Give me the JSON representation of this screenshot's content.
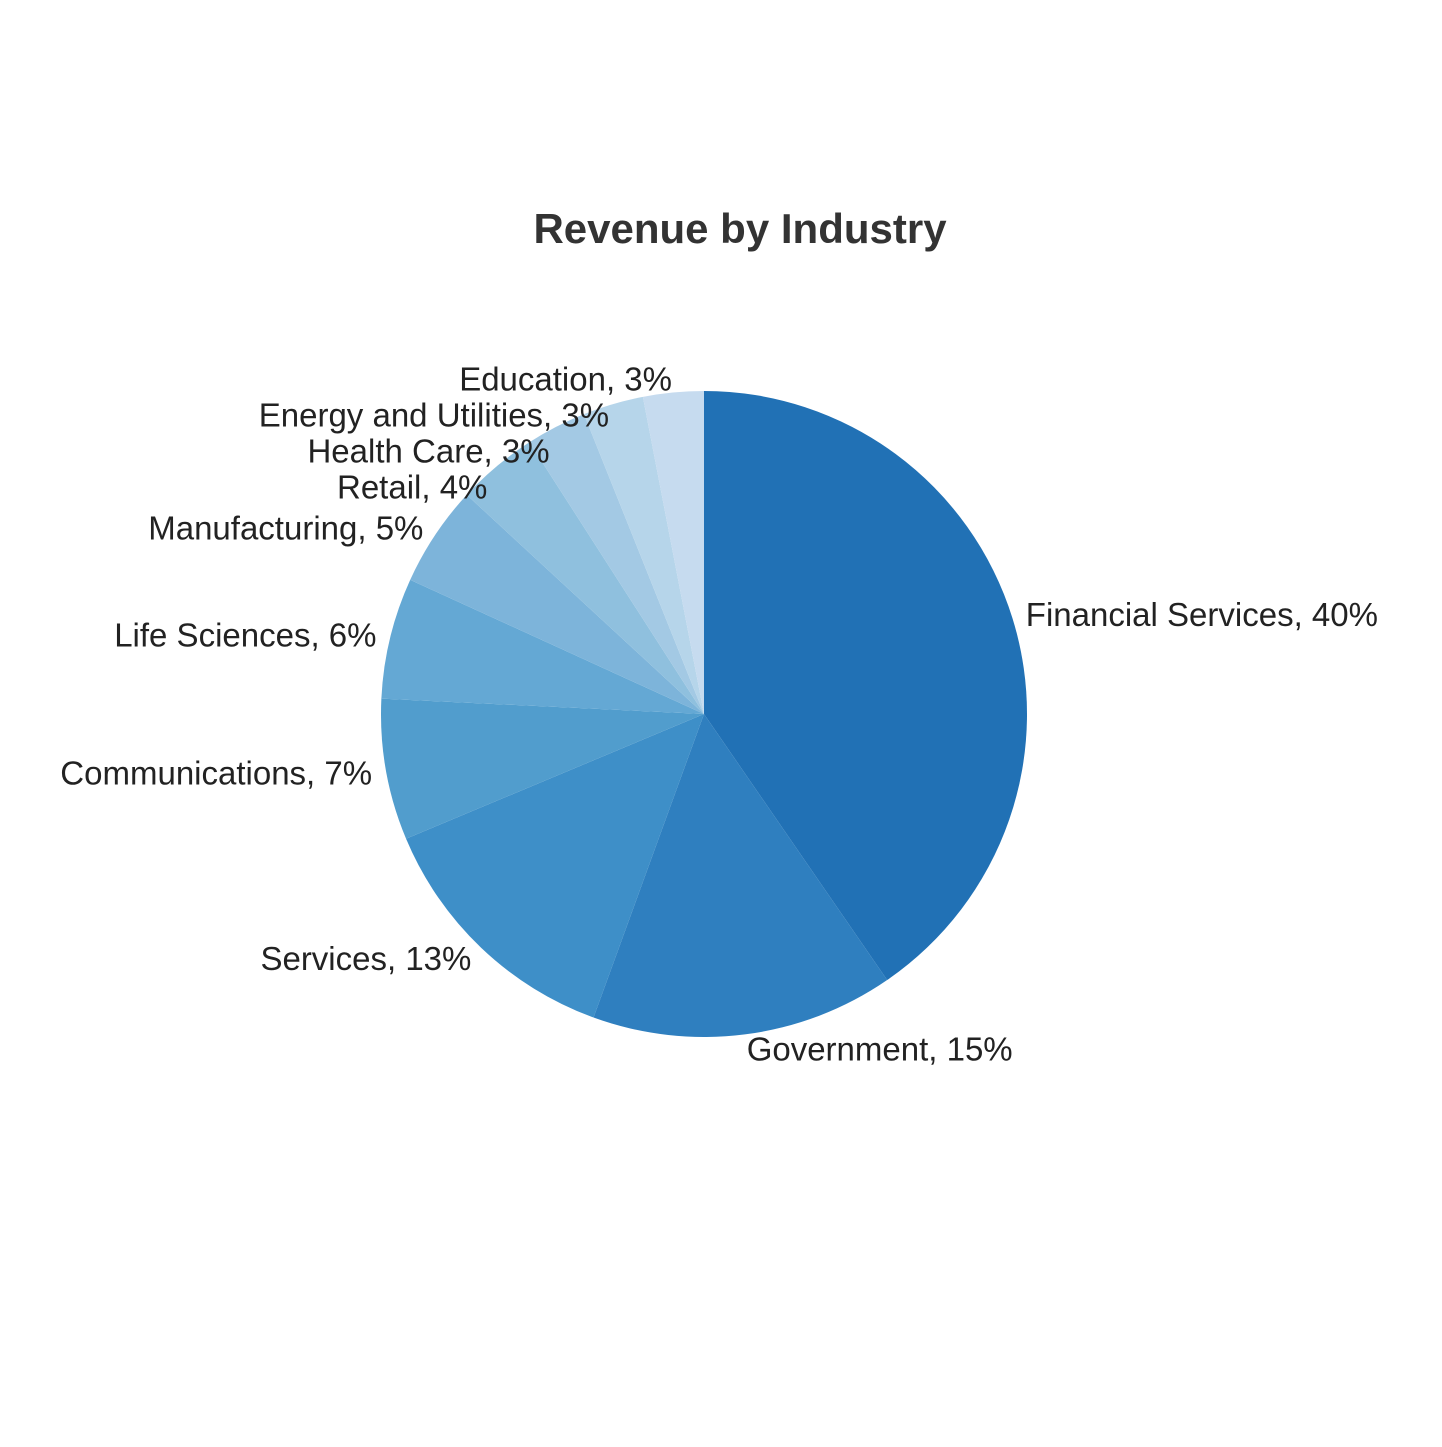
{
  "chart_data": {
    "type": "pie",
    "title": "Revenue by Industry",
    "start_angle": "12 o'clock",
    "direction": "clockwise",
    "slices": [
      {
        "label": "Financial Services, 40%",
        "category": "Financial Services",
        "value": 40,
        "color": "#2171b5"
      },
      {
        "label": "Government, 15%",
        "category": "Government",
        "value": 15,
        "color": "#2f7fbf"
      },
      {
        "label": "Services, 13%",
        "category": "Services",
        "value": 13,
        "color": "#3e8fc8"
      },
      {
        "label": "Communications, 7%",
        "category": "Communications",
        "value": 7,
        "color": "#519dcd"
      },
      {
        "label": "Life Sciences, 6%",
        "category": "Life Sciences",
        "value": 6,
        "color": "#64a8d4"
      },
      {
        "label": "Manufacturing, 5%",
        "category": "Manufacturing",
        "value": 5,
        "color": "#7db4da"
      },
      {
        "label": "Retail, 4%",
        "category": "Retail",
        "value": 4,
        "color": "#8fc0de"
      },
      {
        "label": "Health Care, 3%",
        "category": "Health Care",
        "value": 3,
        "color": "#a3c9e4"
      },
      {
        "label": "Energy and Utilities, 3%",
        "category": "Energy and Utilities",
        "value": 3,
        "color": "#b6d5ea"
      },
      {
        "label": "Education, 3%",
        "category": "Education",
        "value": 3,
        "color": "#c6dbef"
      }
    ]
  }
}
